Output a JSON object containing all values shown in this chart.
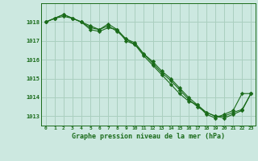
{
  "title": "Graphe pression niveau de la mer (hPa)",
  "bg_color": "#cce8e0",
  "grid_color": "#aacfbf",
  "line_color": "#1a6b1a",
  "x_labels": [
    "0",
    "1",
    "2",
    "3",
    "4",
    "5",
    "6",
    "7",
    "8",
    "9",
    "10",
    "11",
    "12",
    "13",
    "14",
    "15",
    "16",
    "17",
    "18",
    "19",
    "20",
    "21",
    "22",
    "23"
  ],
  "ylim": [
    1012.5,
    1019.0
  ],
  "yticks": [
    1013,
    1014,
    1015,
    1016,
    1017,
    1018
  ],
  "series": [
    [
      1018.0,
      1018.2,
      1018.4,
      1018.2,
      1018.0,
      1017.8,
      1017.6,
      1017.9,
      1017.6,
      1017.1,
      1016.8,
      1016.2,
      1015.7,
      1015.2,
      1014.7,
      1014.2,
      1013.8,
      1013.6,
      1013.1,
      1012.9,
      1013.1,
      1013.3,
      1014.2,
      1014.2
    ],
    [
      1018.0,
      1018.2,
      1018.4,
      1018.2,
      1018.0,
      1017.6,
      1017.5,
      1017.7,
      1017.6,
      1017.0,
      1016.8,
      1016.3,
      1015.8,
      1015.3,
      1014.9,
      1014.4,
      1013.9,
      1013.5,
      1013.2,
      1013.0,
      1012.9,
      1013.1,
      1013.3,
      1014.2
    ],
    [
      1018.0,
      1018.2,
      1018.3,
      1018.2,
      1018.0,
      1017.7,
      1017.6,
      1017.8,
      1017.5,
      1017.1,
      1016.9,
      1016.3,
      1015.9,
      1015.4,
      1015.0,
      1014.5,
      1014.0,
      1013.6,
      1013.2,
      1013.0,
      1013.0,
      1013.2,
      1013.35,
      1014.2
    ]
  ]
}
